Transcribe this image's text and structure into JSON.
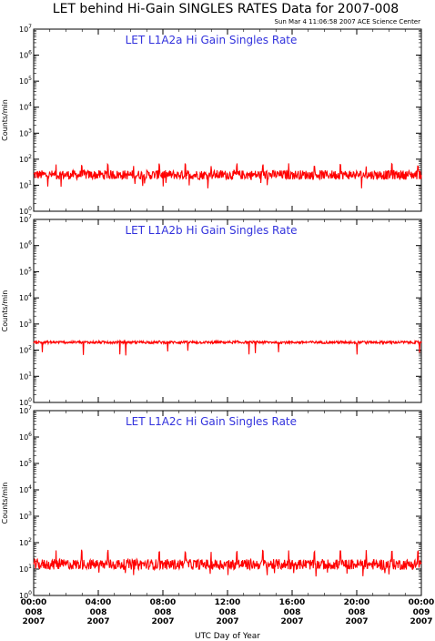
{
  "page": {
    "title": "LET behind Hi-Gain SINGLES RATES Data for 2007-008",
    "timestamp": "Sun Mar  4 11:06:58 2007 ACE Science Center"
  },
  "colors": {
    "series": "#ff0000",
    "panel_title": "#3333dd"
  },
  "chart_data": [
    {
      "type": "line",
      "title": "LET L1A2a Hi Gain Singles Rate",
      "ylabel": "Counts/min",
      "yscale": "log",
      "ylim": [
        1,
        10000000
      ],
      "xlim": [
        "2007-008 00:00",
        "2007-009 00:00"
      ],
      "baseline": 25,
      "noise": 0.18,
      "spike_peak": 70,
      "spike_period_hours": 1.6,
      "series": [
        {
          "name": "",
          "color": "#ff0000"
        }
      ]
    },
    {
      "type": "line",
      "title": "LET L1A2b Hi Gain Singles Rate",
      "ylabel": "Counts/min",
      "yscale": "log",
      "ylim": [
        1,
        10000000
      ],
      "xlim": [
        "2007-008 00:00",
        "2007-009 00:00"
      ],
      "baseline": 200,
      "noise": 0.05,
      "spike_peak": 230,
      "spike_period_hours": 1.6,
      "series": [
        {
          "name": "",
          "color": "#ff0000"
        }
      ]
    },
    {
      "type": "line",
      "title": "LET L1A2c Hi Gain Singles Rate",
      "ylabel": "Counts/min",
      "yscale": "log",
      "ylim": [
        1,
        10000000
      ],
      "xlim": [
        "2007-008 00:00",
        "2007-009 00:00"
      ],
      "baseline": 15,
      "noise": 0.2,
      "spike_peak": 55,
      "spike_period_hours": 1.6,
      "series": [
        {
          "name": "",
          "color": "#ff0000"
        }
      ]
    }
  ],
  "y_ticks": [
    {
      "base": "10",
      "exp": "0"
    },
    {
      "base": "10",
      "exp": "1"
    },
    {
      "base": "10",
      "exp": "2"
    },
    {
      "base": "10",
      "exp": "3"
    },
    {
      "base": "10",
      "exp": "4"
    },
    {
      "base": "10",
      "exp": "5"
    },
    {
      "base": "10",
      "exp": "6"
    },
    {
      "base": "10",
      "exp": "7"
    }
  ],
  "x_ticks": [
    {
      "time": "00:00",
      "doy": "008",
      "year": "2007"
    },
    {
      "time": "04:00",
      "doy": "008",
      "year": "2007"
    },
    {
      "time": "08:00",
      "doy": "008",
      "year": "2007"
    },
    {
      "time": "12:00",
      "doy": "008",
      "year": "2007"
    },
    {
      "time": "16:00",
      "doy": "008",
      "year": "2007"
    },
    {
      "time": "20:00",
      "doy": "008",
      "year": "2007"
    },
    {
      "time": "00:00",
      "doy": "009",
      "year": "2007"
    }
  ],
  "x_axis_label": "UTC Day of Year"
}
